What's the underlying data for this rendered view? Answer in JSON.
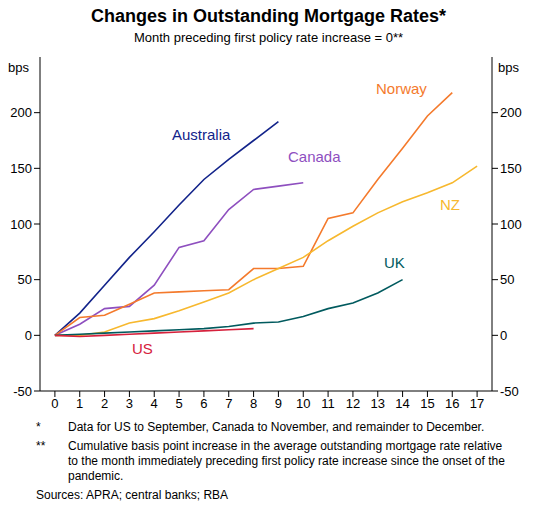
{
  "chart_data": {
    "type": "line",
    "title": "Changes in Outstanding Mortgage Rates*",
    "subtitle": "Month preceding first policy rate increase = 0**",
    "y_label": "bps",
    "y2_label": "bps",
    "x": [
      0,
      1,
      2,
      3,
      4,
      5,
      6,
      7,
      8,
      9,
      10,
      11,
      12,
      13,
      14,
      15,
      16,
      17
    ],
    "xlim": [
      -0.6,
      17.6
    ],
    "xticks": [
      0,
      1,
      2,
      3,
      4,
      5,
      6,
      7,
      8,
      9,
      10,
      11,
      12,
      13,
      14,
      15,
      16,
      17
    ],
    "ylim": [
      -50,
      250
    ],
    "yticks": [
      -50,
      0,
      50,
      100,
      150,
      200
    ],
    "y2lim": [
      -50,
      250
    ],
    "y2ticks": [
      -50,
      0,
      50,
      100,
      150,
      200
    ],
    "grid": false,
    "series": [
      {
        "name": "Australia",
        "color": "#12238a",
        "line_style": "solid",
        "values": [
          0,
          20,
          45,
          70,
          93,
          117,
          140,
          158,
          175,
          192,
          null,
          null,
          null,
          null,
          null,
          null,
          null,
          null
        ]
      },
      {
        "name": "Canada",
        "color": "#8e4fbf",
        "line_style": "solid",
        "values": [
          0,
          10,
          24,
          26,
          45,
          79,
          85,
          113,
          131,
          134,
          137,
          null,
          null,
          null,
          null,
          null,
          null,
          null
        ]
      },
      {
        "name": "Norway",
        "color": "#f47a2c",
        "line_style": "solid",
        "values": [
          0,
          16,
          18,
          28,
          38,
          39,
          40,
          41,
          60,
          60,
          62,
          105,
          110,
          140,
          168,
          197,
          218,
          null
        ]
      },
      {
        "name": "NZ",
        "color": "#f7b82e",
        "line_style": "solid",
        "values": [
          0,
          0,
          3,
          11,
          15,
          22,
          30,
          38,
          50,
          60,
          70,
          85,
          98,
          110,
          120,
          128,
          137,
          152
        ]
      },
      {
        "name": "UK",
        "color": "#005a5e",
        "line_style": "solid",
        "values": [
          0,
          1,
          2,
          3,
          4,
          5,
          6,
          8,
          11,
          12,
          17,
          24,
          29,
          38,
          50,
          null,
          null,
          null
        ]
      },
      {
        "name": "US",
        "color": "#d6213c",
        "line_style": "solid",
        "values": [
          0,
          -1,
          0,
          1,
          2,
          3,
          4,
          5,
          6,
          null,
          null,
          null,
          null,
          null,
          null,
          null,
          null,
          null
        ]
      }
    ],
    "notes": [
      {
        "mark": "*",
        "text": "Data for US to September, Canada to November, and remainder to December."
      },
      {
        "mark": "**",
        "text": "Cumulative basis point increase in the average outstanding mortgage rate relative to the month immediately preceding first policy rate increase since the onset of the pandemic."
      }
    ],
    "source": "Sources: APRA; central banks; RBA"
  }
}
